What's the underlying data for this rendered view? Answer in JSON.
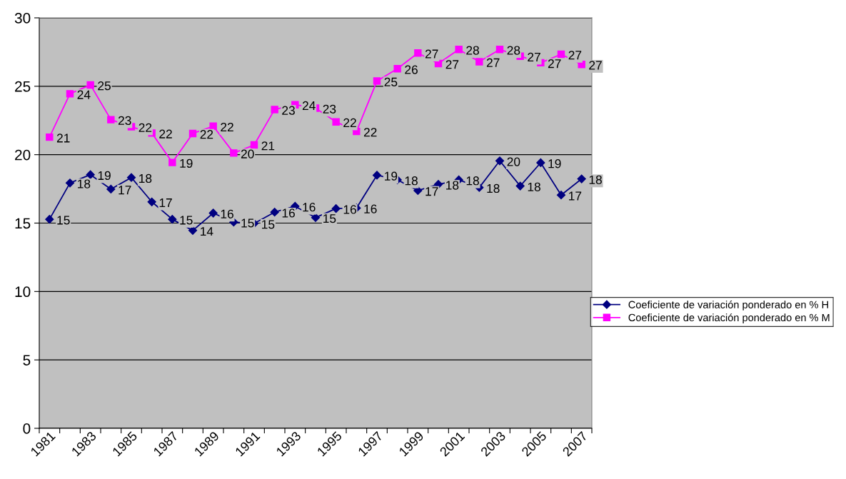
{
  "chart_data": {
    "type": "line",
    "categories": [
      "1981",
      null,
      "1983",
      null,
      "1985",
      null,
      "1987",
      null,
      "1989",
      null,
      "1991",
      null,
      "1993",
      null,
      "1995",
      null,
      "1997",
      null,
      "1999",
      null,
      "2001",
      null,
      "2003",
      null,
      "2005",
      null,
      "2007"
    ],
    "series": [
      {
        "name": "Coeficiente de variación ponderado en % H",
        "color": "#000080",
        "marker": "diamond",
        "values": [
          15.28,
          17.93,
          18.54,
          17.48,
          18.33,
          16.55,
          15.28,
          14.46,
          15.73,
          15.07,
          14.97,
          15.8,
          16.23,
          15.4,
          16.06,
          16.1,
          18.5,
          18.16,
          17.38,
          17.83,
          18.16,
          17.6,
          19.55,
          17.71,
          19.41,
          17.05,
          18.23
        ],
        "value_labels": [
          "15",
          "18",
          "19",
          "17",
          "18",
          "17",
          "15",
          "14",
          "16",
          "15",
          "15",
          "16",
          "16",
          "15",
          "16",
          "16",
          "19",
          "18",
          "17",
          "18",
          "18",
          "18",
          "20",
          "18",
          "19",
          "17",
          "18"
        ]
      },
      {
        "name": "Coeficiente de variación ponderado en % M",
        "color": "#ff00ff",
        "marker": "square",
        "values": [
          21.28,
          24.45,
          25.1,
          22.56,
          22.04,
          21.58,
          19.43,
          21.55,
          22.08,
          20.12,
          20.71,
          23.3,
          23.65,
          23.4,
          22.4,
          21.7,
          25.38,
          26.28,
          27.43,
          26.66,
          27.69,
          26.79,
          27.69,
          27.2,
          26.72,
          27.34,
          26.6
        ],
        "value_labels": [
          "21",
          "24",
          "25",
          "23",
          "22",
          "22",
          "19",
          "22",
          "22",
          "20",
          "21",
          "23",
          "24",
          "23",
          "22",
          "22",
          "25",
          "26",
          "27",
          "27",
          "28",
          "27",
          "28",
          "27",
          "27",
          "27",
          "27"
        ]
      }
    ],
    "ylim": [
      0,
      30
    ],
    "yticks": [
      0,
      5,
      10,
      15,
      20,
      25,
      30
    ],
    "grid": "y",
    "legend": "right",
    "line_style": "solid"
  }
}
